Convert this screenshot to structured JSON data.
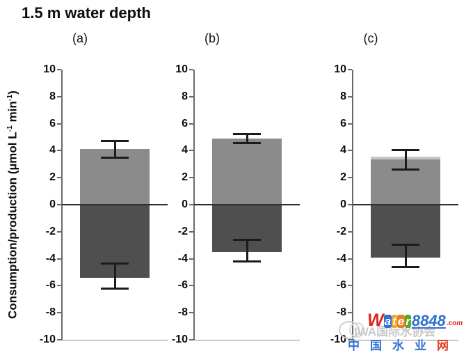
{
  "figure": {
    "title": "1.5 m water depth"
  },
  "y_axis": {
    "label_parts": [
      {
        "text": "Consumption/production (µmol L"
      },
      {
        "text": "-1",
        "sup": true
      },
      {
        "text": " min"
      },
      {
        "text": "-1",
        "sup": true
      },
      {
        "text": ")"
      }
    ],
    "min": -10,
    "max": 10,
    "ticks": [
      10,
      8,
      6,
      4,
      2,
      0,
      -2,
      -4,
      -6,
      -8,
      -10
    ]
  },
  "chart_data": {
    "type": "bar",
    "title": "1.5 m water depth",
    "ylabel": "Consumption/production (µmol L-1 min-1)",
    "ylim": [
      -10,
      10
    ],
    "grid": false,
    "legend": "none",
    "panels": [
      {
        "label": "(a)",
        "production": {
          "value": 4.1,
          "err_range": [
            3.4,
            4.8
          ]
        },
        "consumption": {
          "value": -5.4,
          "err_range": [
            -6.3,
            -4.3
          ]
        }
      },
      {
        "label": "(b)",
        "production": {
          "value": 4.9,
          "err_range": [
            4.5,
            5.3
          ]
        },
        "consumption": {
          "value": -3.5,
          "err_range": [
            -4.3,
            -2.5
          ]
        }
      },
      {
        "label": "(c)",
        "production": {
          "value": 3.35,
          "light_strip_value": 3.55,
          "err_range": [
            2.5,
            4.1
          ]
        },
        "consumption": {
          "value": -3.9,
          "err_range": [
            -4.7,
            -2.9
          ]
        }
      }
    ]
  },
  "colors": {
    "production_bar": "#8b8b8b",
    "consumption_bar": "#4f4f4f",
    "light_strip": "#c4c4c4",
    "axis": "#6a6a6a",
    "zero_line": "#2e2e2e",
    "baseline": "#8d8d8d",
    "error_bar": "#1b1b1b"
  },
  "watermark": {
    "association_text": "IWA国际水协会",
    "site_parts": [
      {
        "text": "W",
        "color": "#d9251c",
        "bg": ""
      },
      {
        "text": "a",
        "color": "#ffffff",
        "bg": "#2e6fd2"
      },
      {
        "text": "t",
        "color": "#ffffff",
        "bg": "#f3a61c"
      },
      {
        "text": "e",
        "color": "#ffffff",
        "bg": "#ef7d1b"
      },
      {
        "text": "r",
        "color": "#ffffff",
        "bg": "#56a82e"
      },
      {
        "text": "8848",
        "color": "#2e6fd2",
        "bg": ""
      },
      {
        "text": ".com",
        "color": "#d9251c",
        "bg": ""
      }
    ],
    "chinese_chars": [
      {
        "text": "中",
        "color": "#2e6fd2"
      },
      {
        "text": "国",
        "color": "#2e6fd2"
      },
      {
        "text": "水",
        "color": "#2e6fd2"
      },
      {
        "text": "业",
        "color": "#2e6fd2"
      },
      {
        "text": "网",
        "color": "#e04023"
      }
    ]
  }
}
